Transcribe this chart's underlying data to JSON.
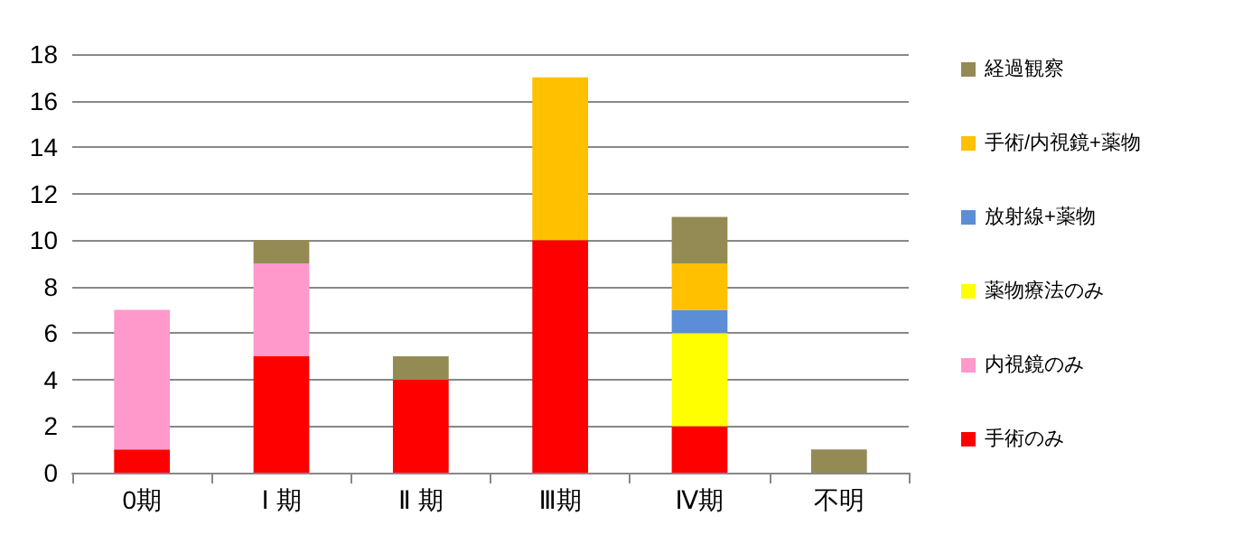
{
  "chart_data": {
    "type": "bar",
    "stacked": true,
    "categories": [
      "0期",
      "Ⅰ 期",
      "Ⅱ 期",
      "Ⅲ期",
      "Ⅳ期",
      "不明"
    ],
    "series": [
      {
        "name": "手術のみ",
        "color": "#ff0000",
        "values": [
          1,
          5,
          4,
          10,
          2,
          null
        ]
      },
      {
        "name": "内視鏡のみ",
        "color": "#ff99cc",
        "values": [
          6,
          4,
          null,
          null,
          null,
          null
        ]
      },
      {
        "name": "薬物療法のみ",
        "color": "#ffff00",
        "values": [
          null,
          null,
          null,
          null,
          4,
          null
        ]
      },
      {
        "name": "放射線+薬物",
        "color": "#5b8ed6",
        "values": [
          null,
          null,
          null,
          null,
          1,
          null
        ]
      },
      {
        "name": "手術/内視鏡+薬物",
        "color": "#ffc000",
        "values": [
          null,
          null,
          null,
          7,
          2,
          null
        ]
      },
      {
        "name": "経過観察",
        "color": "#948a54",
        "values": [
          null,
          1,
          1,
          null,
          2,
          1
        ]
      }
    ],
    "ylim": [
      0,
      18
    ],
    "yticks": [
      0,
      2,
      4,
      6,
      8,
      10,
      12,
      14,
      16,
      18
    ],
    "grid": "y",
    "legend": "right"
  }
}
